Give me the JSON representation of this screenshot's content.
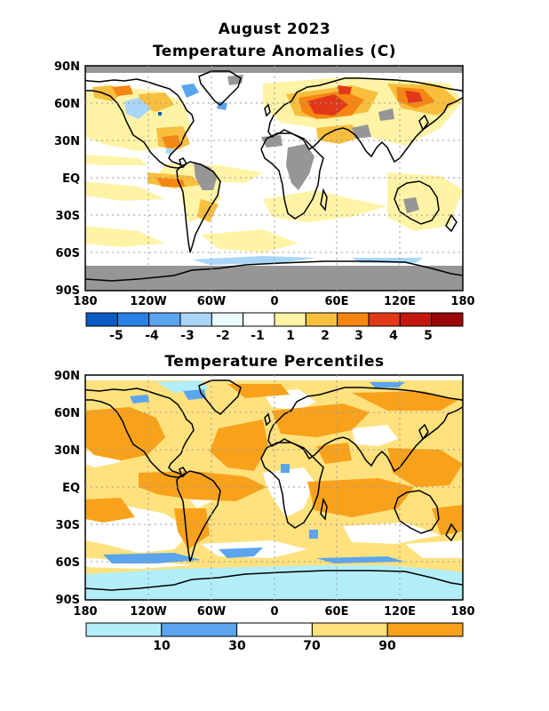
{
  "header": {
    "date": "August 2023",
    "map1_title": "Temperature Anomalies (C)",
    "map2_title": "Temperature Percentiles"
  },
  "axes": {
    "lat_labels": [
      "90N",
      "60N",
      "30N",
      "EQ",
      "30S",
      "60S",
      "90S"
    ],
    "lon_labels": [
      "180",
      "120W",
      "60W",
      "0",
      "60E",
      "120E",
      "180"
    ]
  },
  "anomaly_legend": {
    "colors": [
      "#0a5bc4",
      "#2b80e3",
      "#5aa4ee",
      "#a9d6f8",
      "#e8fbff",
      "#ffffff",
      "#fff3a6",
      "#f8bf3f",
      "#f58612",
      "#e2381a",
      "#c4180e",
      "#9c0606"
    ],
    "labels": [
      "-5",
      "-4",
      "-3",
      "-2",
      "-1",
      "1",
      "2",
      "3",
      "4",
      "5"
    ],
    "missing_color": "#969696"
  },
  "percentile_legend": {
    "colors": [
      "#b2eefa",
      "#5aa5ee",
      "#ffffff",
      "#ffe17e",
      "#f8a21c"
    ],
    "labels": [
      "10",
      "30",
      "70",
      "90"
    ]
  }
}
